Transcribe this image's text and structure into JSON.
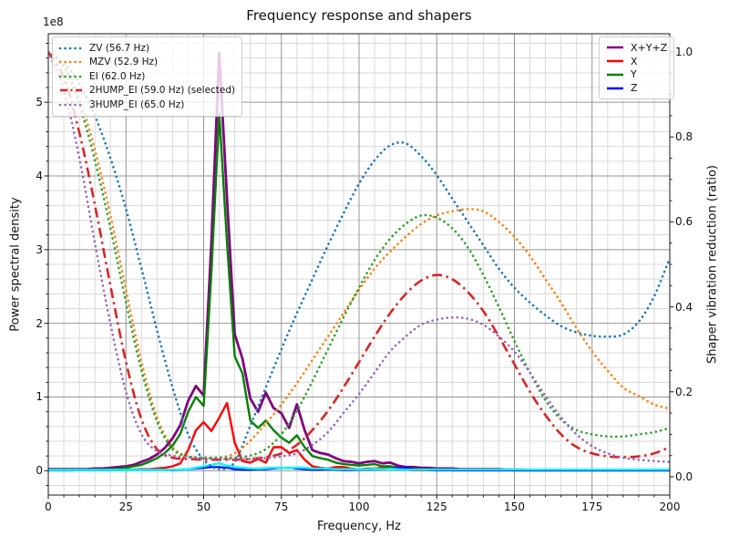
{
  "title": "Frequency response and shapers",
  "axes": {
    "xlabel": "Frequency, Hz",
    "ylabel_left": "Power spectral density",
    "ylabel_right": "Shaper vibration reduction (ratio)",
    "offset_text": "1e8",
    "x_ticks": [
      0,
      25,
      50,
      75,
      100,
      125,
      150,
      175,
      200
    ],
    "x_minor_step": 5,
    "y_left_ticks": [
      "0",
      "1",
      "2",
      "3",
      "4",
      "5"
    ],
    "y_left_minor_step_1e8": 0.2,
    "y_right_ticks": [
      "0.0",
      "0.2",
      "0.4",
      "0.6",
      "0.8",
      "1.0"
    ],
    "y_right_minor_step": 0.05,
    "grid_major_color": "#969696",
    "grid_minor_color": "#d9d9d9",
    "spine_color": "#1a1a1a"
  },
  "legend_left": {
    "entries": [
      {
        "label": "ZV (56.7 Hz)",
        "color": "#1f77b4",
        "style": "dotted"
      },
      {
        "label": "MZV (52.9 Hz)",
        "color": "#ff7f0e",
        "style": "dotted"
      },
      {
        "label": "EI (62.0 Hz)",
        "color": "#2ca02c",
        "style": "dotted"
      },
      {
        "label": "2HUMP_EI (59.0 Hz) (selected)",
        "color": "#d62728",
        "style": "dashdot"
      },
      {
        "label": "3HUMP_EI (65.0 Hz)",
        "color": "#9467bd",
        "style": "dotted"
      }
    ]
  },
  "legend_right": {
    "entries": [
      {
        "label": "X+Y+Z",
        "color": "#800080",
        "style": "solid"
      },
      {
        "label": "X",
        "color": "#ff0000",
        "style": "solid"
      },
      {
        "label": "Y",
        "color": "#008000",
        "style": "solid"
      },
      {
        "label": "Z",
        "color": "#0000ff",
        "style": "solid"
      }
    ]
  },
  "chart_data": {
    "type": "line",
    "title": "Frequency response and shapers",
    "xlabel": "Frequency, Hz",
    "ylabel_left": "Power spectral density",
    "ylabel_right": "Shaper vibration reduction (ratio)",
    "xlim": [
      0,
      200
    ],
    "ylim_left_1e8": [
      -0.33,
      5.93
    ],
    "ylim_right": [
      -0.043,
      1.043
    ],
    "grid": "both",
    "psd_x_step_hz": 2.5,
    "psd_series": [
      {
        "name": "X+Y+Z",
        "color": "#800080",
        "width": 2.8,
        "unit": "1e8",
        "values": [
          0.02,
          0.02,
          0.02,
          0.02,
          0.02,
          0.02,
          0.03,
          0.03,
          0.04,
          0.05,
          0.06,
          0.08,
          0.12,
          0.16,
          0.22,
          0.31,
          0.44,
          0.62,
          0.95,
          1.15,
          1.02,
          3.1,
          5.67,
          3.7,
          1.85,
          1.52,
          0.98,
          0.8,
          1.06,
          0.85,
          0.78,
          0.58,
          0.9,
          0.55,
          0.28,
          0.24,
          0.22,
          0.17,
          0.13,
          0.12,
          0.1,
          0.12,
          0.13,
          0.1,
          0.11,
          0.07,
          0.05,
          0.05,
          0.04,
          0.04,
          0.03,
          0.03,
          0.03,
          0.02,
          0.02,
          0.02,
          0.02,
          0.02,
          0.02,
          0.015,
          0.015,
          0.015,
          0.01,
          0.01,
          0.01,
          0.01,
          0.01,
          0.01,
          0.01,
          0.01,
          0.01,
          0.01,
          0.01,
          0.01,
          0.01,
          0.01,
          0.01,
          0.01,
          0.01,
          0.01,
          0.01
        ]
      },
      {
        "name": "X",
        "color": "#ff0000",
        "width": 2.4,
        "unit": "1e8",
        "values": [
          0.005,
          0.005,
          0.005,
          0.005,
          0.01,
          0.01,
          0.01,
          0.01,
          0.01,
          0.01,
          0.015,
          0.015,
          0.02,
          0.02,
          0.03,
          0.04,
          0.06,
          0.1,
          0.28,
          0.55,
          0.66,
          0.54,
          0.72,
          0.92,
          0.38,
          0.13,
          0.11,
          0.16,
          0.11,
          0.32,
          0.32,
          0.24,
          0.28,
          0.15,
          0.06,
          0.04,
          0.03,
          0.05,
          0.05,
          0.03,
          0.02,
          0.03,
          0.03,
          0.04,
          0.04,
          0.02,
          0.02,
          0.01,
          0.01,
          0.01,
          0.01,
          0.01,
          0.005,
          0.005,
          0.005,
          0.005,
          0.005,
          0.005,
          0.005,
          0.005,
          0.005,
          0.005,
          0.005,
          0.005,
          0.005,
          0.005,
          0.005,
          0.005,
          0.005,
          0.005,
          0.005,
          0.005,
          0.005,
          0.005,
          0.005,
          0.005,
          0.005,
          0.005,
          0.005,
          0.005,
          0.005
        ]
      },
      {
        "name": "Y",
        "color": "#008000",
        "width": 2.4,
        "unit": "1e8",
        "values": [
          0.01,
          0.01,
          0.01,
          0.01,
          0.01,
          0.01,
          0.015,
          0.015,
          0.02,
          0.03,
          0.04,
          0.06,
          0.08,
          0.12,
          0.17,
          0.24,
          0.34,
          0.5,
          0.8,
          1.0,
          0.88,
          2.7,
          4.85,
          3.1,
          1.55,
          1.32,
          0.68,
          0.58,
          0.68,
          0.55,
          0.45,
          0.38,
          0.48,
          0.32,
          0.2,
          0.17,
          0.15,
          0.11,
          0.09,
          0.08,
          0.07,
          0.08,
          0.09,
          0.06,
          0.06,
          0.04,
          0.03,
          0.03,
          0.02,
          0.02,
          0.02,
          0.015,
          0.015,
          0.01,
          0.01,
          0.01,
          0.01,
          0.01,
          0.01,
          0.01,
          0.005,
          0.005,
          0.005,
          0.005,
          0.005,
          0.005,
          0.005,
          0.005,
          0.005,
          0.005,
          0.005,
          0.005,
          0.005,
          0.005,
          0.005,
          0.005,
          0.005,
          0.005,
          0.005,
          0.005,
          0.005
        ]
      },
      {
        "name": "Z",
        "color": "#0000ff",
        "width": 2.2,
        "unit": "1e8",
        "values": [
          0.005,
          0.005,
          0.005,
          0.005,
          0.005,
          0.005,
          0.005,
          0.005,
          0.005,
          0.01,
          0.01,
          0.01,
          0.01,
          0.01,
          0.01,
          0.01,
          0.01,
          0.015,
          0.02,
          0.03,
          0.04,
          0.05,
          0.05,
          0.04,
          0.02,
          0.015,
          0.015,
          0.02,
          0.02,
          0.03,
          0.04,
          0.04,
          0.03,
          0.02,
          0.015,
          0.015,
          0.02,
          0.015,
          0.01,
          0.01,
          0.015,
          0.015,
          0.02,
          0.02,
          0.025,
          0.04,
          0.04,
          0.025,
          0.015,
          0.01,
          0.005,
          0.005,
          0.005,
          0.005,
          0.005,
          0.005,
          0.005,
          0.005,
          0.005,
          0.005,
          0.005,
          0.005,
          0.005,
          0.005,
          0.005,
          0.005,
          0.005,
          0.005,
          0.005,
          0.005,
          0.005,
          0.005,
          0.005,
          0.005,
          0.005,
          0.005,
          0.005,
          0.005,
          0.005,
          0.005,
          0.005
        ]
      },
      {
        "name": "after-shaper",
        "color": "#00ffff",
        "width": 2.4,
        "unit": "1e8",
        "values": [
          0.01,
          0.01,
          0.01,
          0.01,
          0.01,
          0.01,
          0.01,
          0.01,
          0.01,
          0.01,
          0.01,
          0.01,
          0.01,
          0.01,
          0.01,
          0.01,
          0.015,
          0.015,
          0.02,
          0.04,
          0.06,
          0.08,
          0.1,
          0.07,
          0.05,
          0.04,
          0.03,
          0.03,
          0.035,
          0.04,
          0.04,
          0.035,
          0.045,
          0.04,
          0.03,
          0.03,
          0.03,
          0.02,
          0.02,
          0.02,
          0.02,
          0.02,
          0.025,
          0.02,
          0.025,
          0.02,
          0.015,
          0.015,
          0.015,
          0.015,
          0.015,
          0.015,
          0.015,
          0.015,
          0.015,
          0.015,
          0.015,
          0.015,
          0.015,
          0.015,
          0.015,
          0.015,
          0.015,
          0.015,
          0.015,
          0.015,
          0.015,
          0.015,
          0.015,
          0.015,
          0.015,
          0.015,
          0.015,
          0.015,
          0.015,
          0.015,
          0.015,
          0.015,
          0.015,
          0.015,
          0.015
        ]
      }
    ],
    "shaper_x_step_hz": 5,
    "shaper_series": [
      {
        "name": "ZV",
        "freq_hz": 56.7,
        "selected": false,
        "color": "#1f77b4",
        "style": "dotted",
        "values": [
          1.0,
          0.975,
          0.925,
          0.85,
          0.75,
          0.63,
          0.49,
          0.345,
          0.21,
          0.1,
          0.04,
          0.018,
          0.035,
          0.12,
          0.21,
          0.3,
          0.385,
          0.465,
          0.545,
          0.62,
          0.69,
          0.745,
          0.78,
          0.785,
          0.755,
          0.71,
          0.655,
          0.6,
          0.545,
          0.49,
          0.445,
          0.41,
          0.38,
          0.355,
          0.34,
          0.332,
          0.33,
          0.335,
          0.365,
          0.425,
          0.515
        ]
      },
      {
        "name": "MZV",
        "freq_hz": 52.9,
        "selected": false,
        "color": "#ff7f0e",
        "style": "dotted",
        "values": [
          1.0,
          0.97,
          0.89,
          0.77,
          0.615,
          0.44,
          0.27,
          0.14,
          0.07,
          0.048,
          0.042,
          0.045,
          0.055,
          0.085,
          0.125,
          0.17,
          0.22,
          0.275,
          0.33,
          0.385,
          0.44,
          0.49,
          0.53,
          0.565,
          0.595,
          0.615,
          0.625,
          0.63,
          0.625,
          0.6,
          0.565,
          0.52,
          0.465,
          0.41,
          0.35,
          0.295,
          0.25,
          0.21,
          0.19,
          0.17,
          0.16
        ]
      },
      {
        "name": "EI",
        "freq_hz": 62.0,
        "selected": false,
        "color": "#2ca02c",
        "style": "dotted",
        "values": [
          1.0,
          0.965,
          0.875,
          0.745,
          0.585,
          0.41,
          0.25,
          0.13,
          0.065,
          0.048,
          0.045,
          0.045,
          0.045,
          0.05,
          0.065,
          0.1,
          0.155,
          0.225,
          0.3,
          0.375,
          0.445,
          0.51,
          0.56,
          0.595,
          0.615,
          0.61,
          0.585,
          0.54,
          0.475,
          0.4,
          0.32,
          0.245,
          0.18,
          0.135,
          0.11,
          0.1,
          0.095,
          0.095,
          0.1,
          0.105,
          0.115
        ]
      },
      {
        "name": "2HUMP_EI",
        "freq_hz": 59.0,
        "selected": true,
        "color": "#d62728",
        "style": "dashdot",
        "values": [
          1.0,
          0.94,
          0.81,
          0.64,
          0.45,
          0.27,
          0.135,
          0.065,
          0.045,
          0.042,
          0.04,
          0.04,
          0.04,
          0.042,
          0.046,
          0.055,
          0.075,
          0.11,
          0.155,
          0.21,
          0.27,
          0.33,
          0.385,
          0.43,
          0.462,
          0.475,
          0.465,
          0.435,
          0.39,
          0.33,
          0.265,
          0.2,
          0.145,
          0.1,
          0.07,
          0.055,
          0.048,
          0.046,
          0.048,
          0.055,
          0.07
        ]
      },
      {
        "name": "3HUMP_EI",
        "freq_hz": 65.0,
        "selected": false,
        "color": "#9467bd",
        "style": "dotted",
        "values": [
          1.0,
          0.91,
          0.75,
          0.55,
          0.36,
          0.2,
          0.1,
          0.06,
          0.05,
          0.046,
          0.044,
          0.042,
          0.042,
          0.042,
          0.044,
          0.048,
          0.055,
          0.075,
          0.105,
          0.15,
          0.195,
          0.245,
          0.295,
          0.33,
          0.358,
          0.37,
          0.375,
          0.372,
          0.358,
          0.33,
          0.295,
          0.245,
          0.19,
          0.14,
          0.1,
          0.072,
          0.055,
          0.045,
          0.04,
          0.037,
          0.035
        ]
      }
    ],
    "legend_left_position": "upper left",
    "legend_right_position": "upper right"
  }
}
